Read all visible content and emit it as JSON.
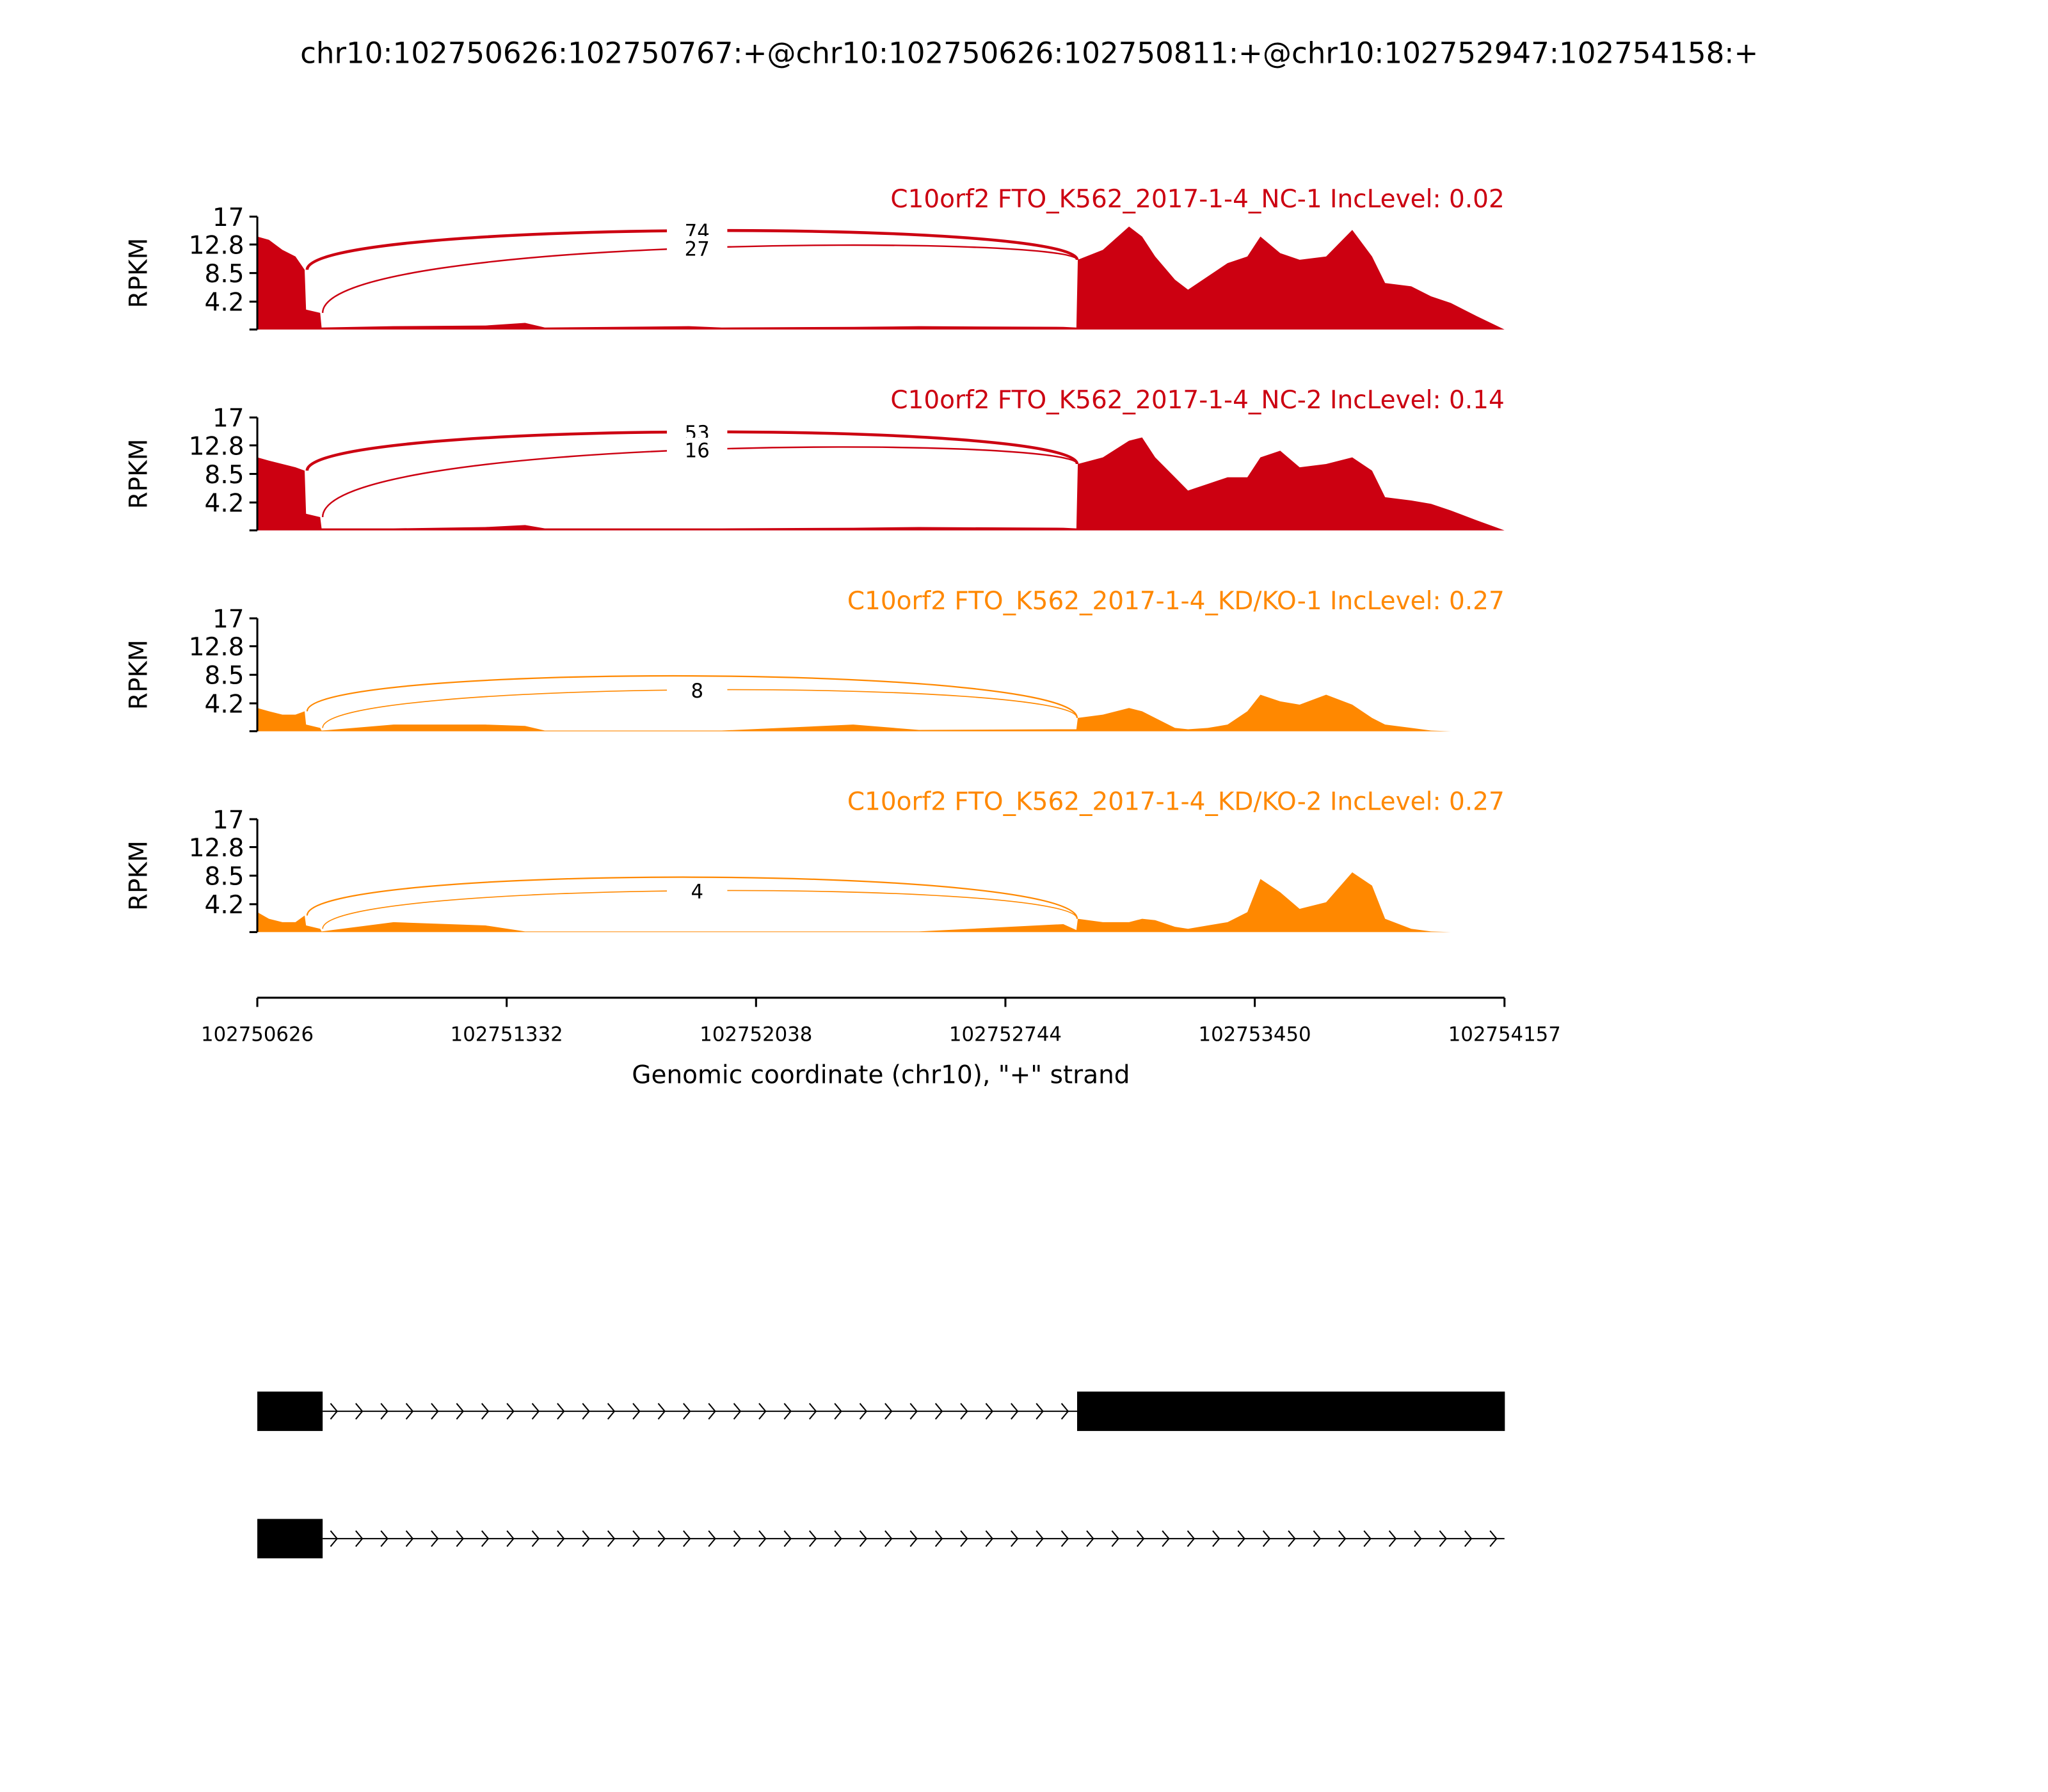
{
  "title": "chr10:102750626:102750767:+@chr10:102750626:102750811:+@chr10:102752947:102754158:+",
  "chart_data": {
    "type": "area",
    "title": "chr10:102750626:102750767:+@chr10:102750626:102750811:+@chr10:102752947:102754158:+",
    "xlabel": "Genomic coordinate (chr10), \"+\" strand",
    "ylabel": "RPKM",
    "xlim": [
      102750626,
      102754157
    ],
    "x_ticks": [
      "102750626",
      "102751332",
      "102752038",
      "102752744",
      "102753450",
      "102754157"
    ],
    "ylim": [
      0,
      17
    ],
    "y_ticks": [
      "4.2",
      "8.5",
      "12.8",
      "17"
    ],
    "coverage_x_offset_from": 102750626,
    "coverage_x_offsets": [
      0,
      33,
      71,
      108,
      134,
      138,
      178,
      182,
      386,
      646,
      758,
      814,
      1222,
      1315,
      1687,
      1873,
      2282,
      2319,
      2323,
      2394,
      2468,
      2505,
      2542,
      2598,
      2635,
      2691,
      2747,
      2803,
      2840,
      2896,
      2951,
      3026,
      3100,
      3156,
      3193,
      3267,
      3323,
      3379,
      3453,
      3531
    ],
    "junctions": [
      {
        "from": 102750767,
        "to": 102752947
      },
      {
        "from": 102750811,
        "to": 102752947
      }
    ],
    "series": [
      {
        "name": "C10orf2 FTO_K562_2017-1-4_NC-1 IncLevel: 0.02",
        "color": "#cc0011",
        "junction_counts": [
          "74",
          "27"
        ],
        "values": [
          14,
          13.5,
          12,
          11,
          9,
          3,
          2.5,
          0.3,
          0.5,
          0.6,
          1,
          0.3,
          0.5,
          0.3,
          0.4,
          0.5,
          0.4,
          0.3,
          10.5,
          12,
          15.5,
          14,
          11,
          7.5,
          6,
          8,
          10,
          11,
          14,
          11.5,
          10.5,
          11,
          15,
          11,
          7,
          6.5,
          5,
          4,
          2,
          0
        ]
      },
      {
        "name": "C10orf2 FTO_K562_2017-1-4_NC-2 IncLevel: 0.14",
        "color": "#cc0011",
        "junction_counts": [
          "53",
          "16"
        ],
        "values": [
          11,
          10.5,
          10,
          9.5,
          9,
          2.5,
          2,
          0.3,
          0.3,
          0.5,
          0.8,
          0.3,
          0.3,
          0.3,
          0.4,
          0.5,
          0.4,
          0.3,
          10,
          11,
          13.5,
          14,
          11,
          8,
          6,
          7,
          8,
          8,
          11,
          12,
          9.5,
          10,
          11,
          9,
          5,
          4.5,
          4,
          3,
          1.5,
          0
        ]
      },
      {
        "name": "C10orf2 FTO_K562_2017-1-4_KD/KO-1 IncLevel: 0.27",
        "color": "#ff8800",
        "junction_counts": [
          "",
          "8"
        ],
        "values": [
          3.5,
          3,
          2.5,
          2.5,
          3,
          1,
          0.5,
          0.1,
          1,
          1,
          0.8,
          0.1,
          0.1,
          0.1,
          1,
          0.2,
          0.3,
          0.3,
          2,
          2.5,
          3.5,
          3,
          2,
          0.5,
          0.3,
          0.5,
          1,
          3,
          5.5,
          4.5,
          4,
          5.5,
          4,
          2,
          1,
          0.5,
          0.1,
          0,
          0,
          0
        ]
      },
      {
        "name": "C10orf2 FTO_K562_2017-1-4_KD/KO-2 IncLevel: 0.27",
        "color": "#ff8800",
        "junction_counts": [
          "",
          "4"
        ],
        "values": [
          3,
          2,
          1.5,
          1.5,
          2.5,
          1,
          0.5,
          0.1,
          1.5,
          1,
          0.1,
          0.1,
          0.1,
          0.1,
          0.1,
          0.1,
          1.2,
          0.3,
          2,
          1.5,
          1.5,
          2,
          1.8,
          0.8,
          0.5,
          1,
          1.5,
          3,
          8,
          6,
          3.5,
          4.5,
          9,
          7,
          2,
          0.5,
          0.1,
          0,
          0,
          0
        ]
      }
    ],
    "gene_models": [
      {
        "exons": [
          [
            102750626,
            102750811
          ],
          [
            102752947,
            102754158
          ]
        ]
      },
      {
        "exons": [
          [
            102750626,
            102750811
          ]
        ]
      }
    ]
  }
}
